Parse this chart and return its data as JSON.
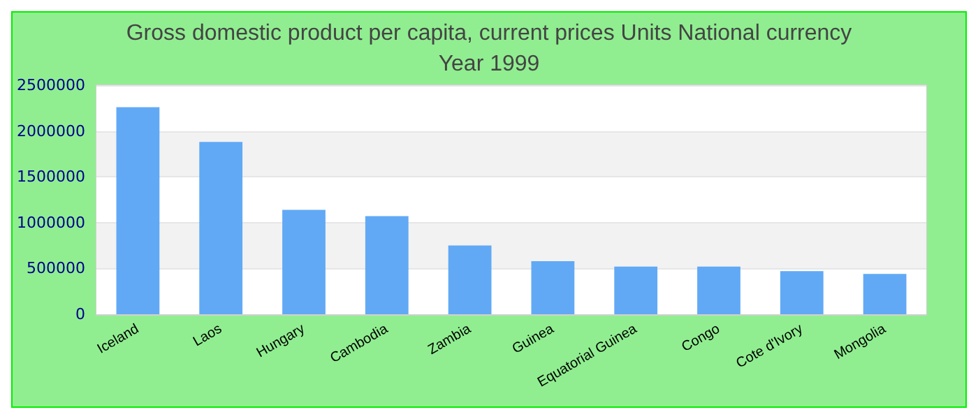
{
  "chart_data": {
    "type": "bar",
    "title": "Gross domestic product per capita, current prices Units National currency",
    "subtitle": "Year 1999",
    "categories": [
      "Iceland",
      "Laos",
      "Hungary",
      "Cambodia",
      "Zambia",
      "Guinea",
      "Equatorial Guinea",
      "Congo",
      "Cote d'Ivory",
      "Mongolia"
    ],
    "values": [
      2260000,
      1880000,
      1140000,
      1070000,
      750000,
      580000,
      520000,
      520000,
      470000,
      440000
    ],
    "color": "#61a9f5",
    "ylim": [
      0,
      2500000
    ],
    "yticks": [
      0,
      500000,
      1000000,
      1500000,
      2000000,
      2500000
    ],
    "grid": "y"
  }
}
